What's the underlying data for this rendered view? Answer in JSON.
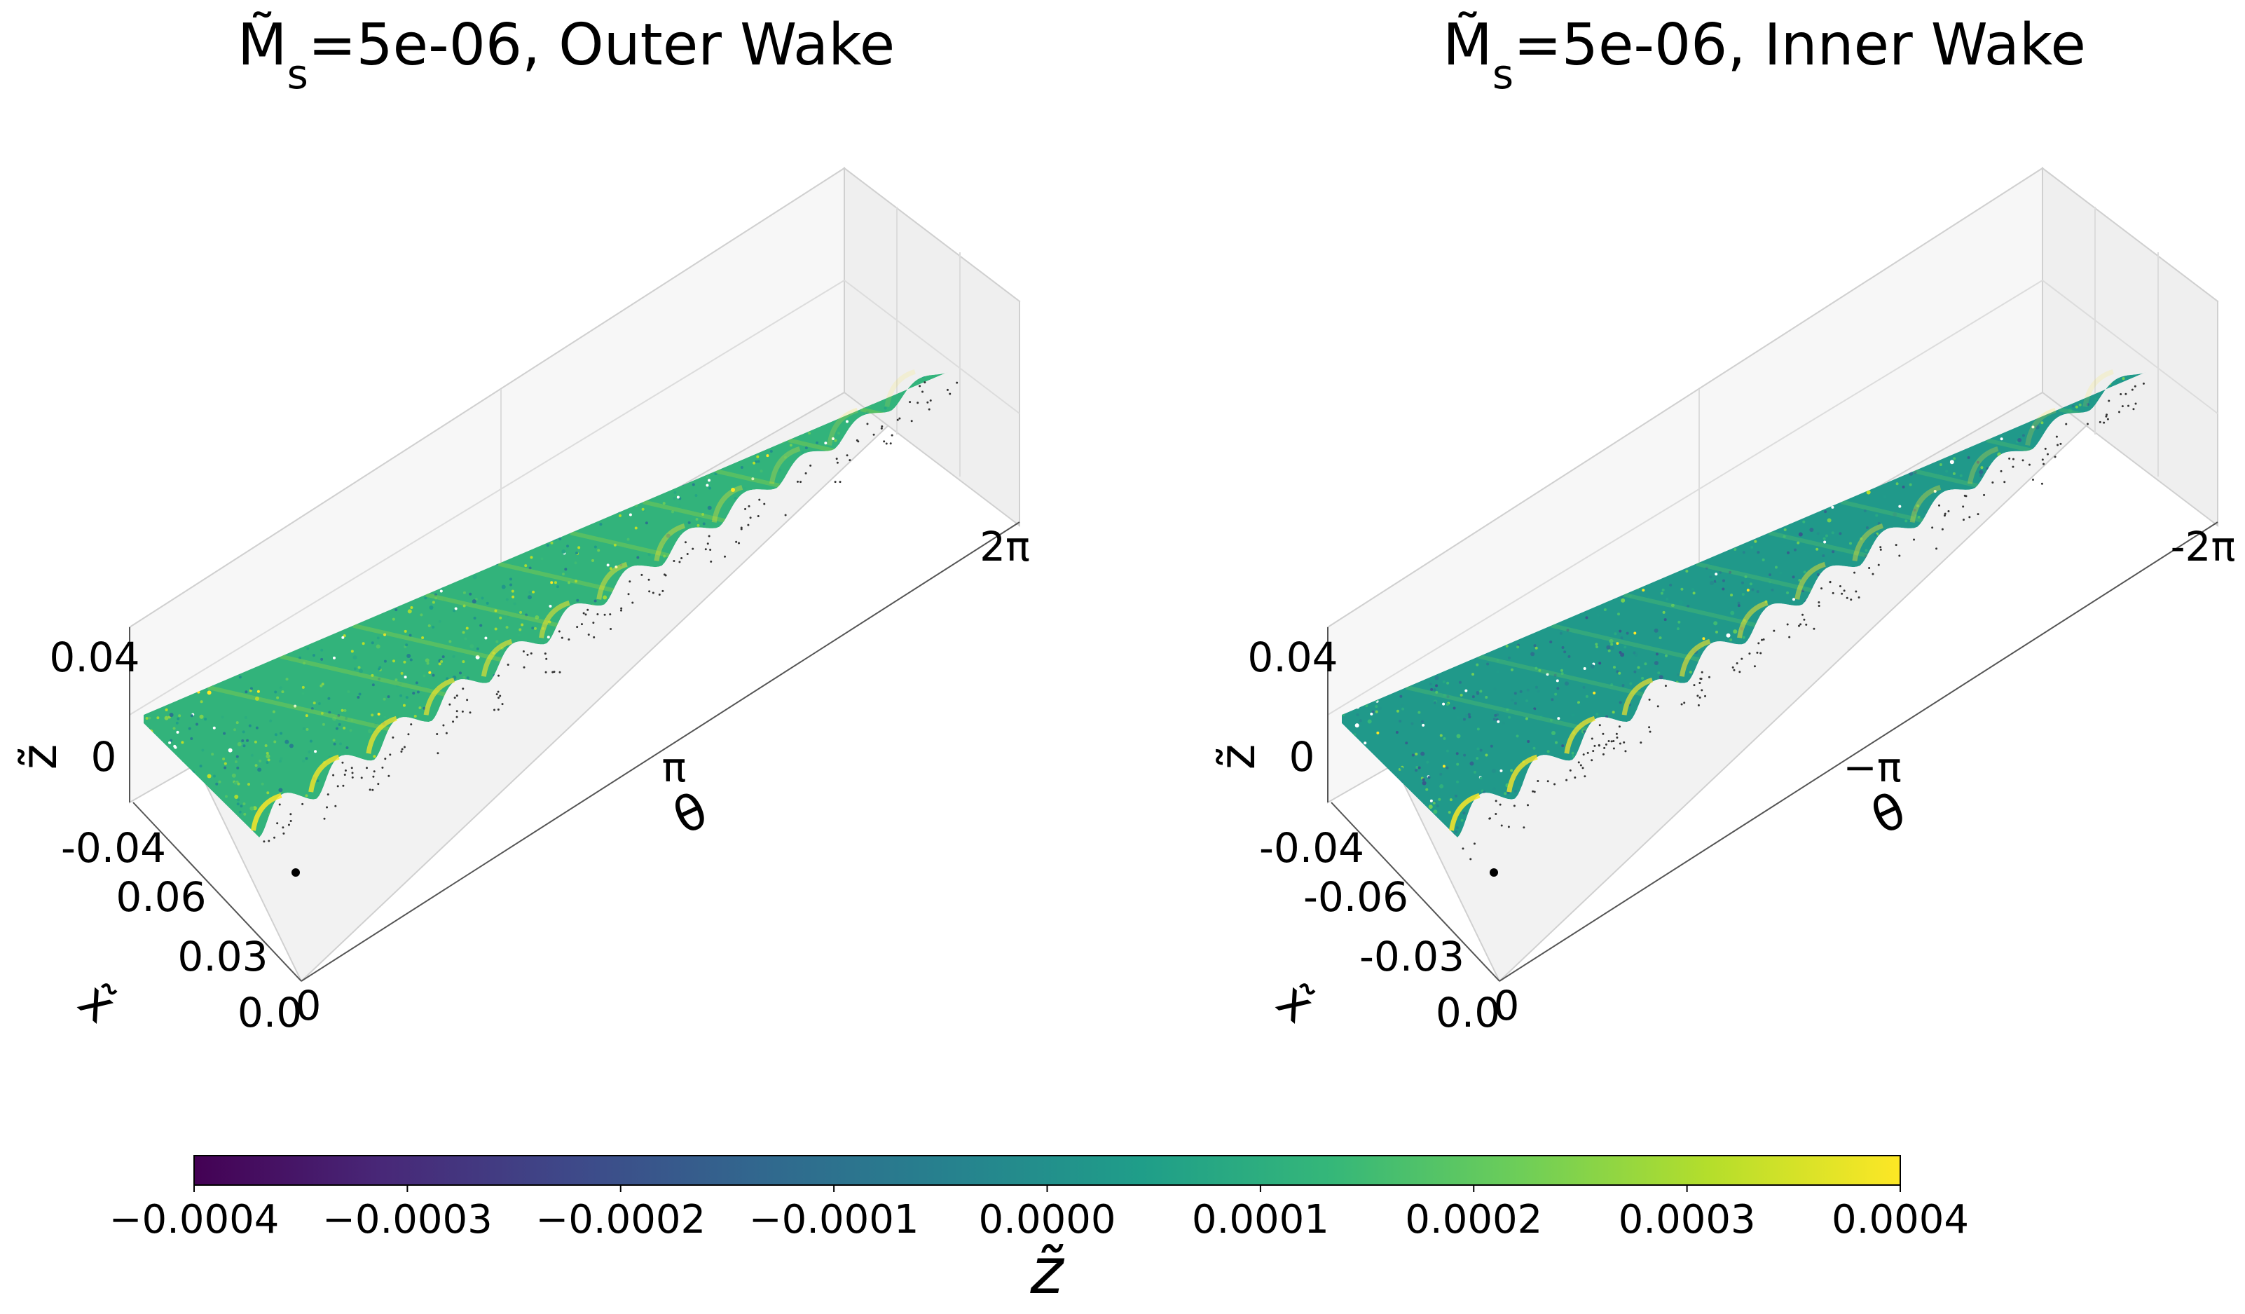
{
  "chart_data": [
    {
      "type": "scatter",
      "title_symbol": "M̃",
      "title_subscript": "s",
      "title_rest": "=5e-06, Outer Wake",
      "xlabel": "θ",
      "ylabel": "x̃",
      "zlabel": "z̃",
      "theta_ticks": [
        "π",
        "2π"
      ],
      "x_ticks": [
        "0.06",
        "0.03",
        "0.0"
      ],
      "z_ticks": [
        "0.04",
        "0",
        "-0.04"
      ],
      "theta_origin_tick": "0",
      "theta_range": [
        0,
        6.283
      ],
      "x_range": [
        0.0,
        0.075
      ],
      "z_range": [
        -0.04,
        0.04
      ],
      "wake_crest_count": 12,
      "color_bias": 0.00012
    },
    {
      "type": "scatter",
      "title_symbol": "M̃",
      "title_subscript": "s",
      "title_rest": "=5e-06, Inner Wake",
      "xlabel": "θ",
      "ylabel": "x̃",
      "zlabel": "z̃",
      "theta_ticks": [
        "−π",
        "-2π"
      ],
      "x_ticks": [
        "-0.06",
        "-0.03",
        "0.0"
      ],
      "z_ticks": [
        "0.04",
        "0",
        "-0.04"
      ],
      "theta_origin_tick": "0",
      "theta_range": [
        0,
        -6.283
      ],
      "x_range": [
        0.0,
        -0.075
      ],
      "z_range": [
        -0.04,
        0.04
      ],
      "wake_crest_count": 12,
      "color_bias": 3e-05
    }
  ],
  "colorbar": {
    "colormap": "viridis",
    "range": [
      -0.0004,
      0.0004
    ],
    "ticks": [
      "−0.0004",
      "−0.0003",
      "−0.0002",
      "−0.0001",
      "0.0000",
      "0.0001",
      "0.0002",
      "0.0003",
      "0.0004"
    ],
    "label": "z̃",
    "stops": [
      "#440154",
      "#482878",
      "#3e4989",
      "#31688e",
      "#26828e",
      "#1f9e89",
      "#35b779",
      "#6ece58",
      "#b5de2b",
      "#fde725"
    ]
  }
}
